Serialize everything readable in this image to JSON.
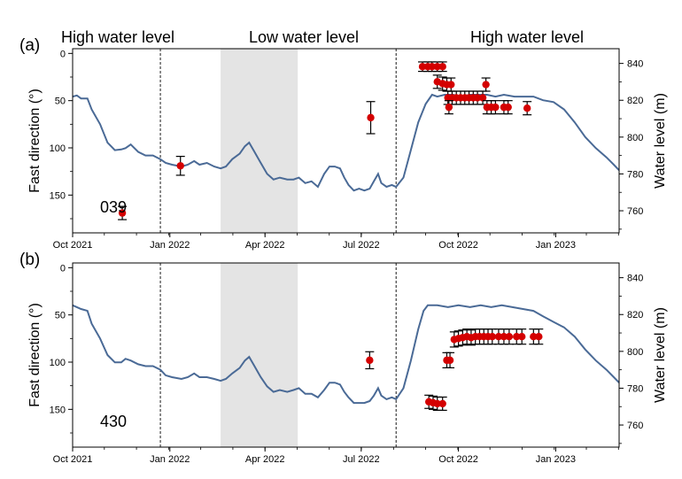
{
  "regions": {
    "high1": "High water level",
    "low": "Low water level",
    "high2": "High water level"
  },
  "colors": {
    "water_line": "#4a6a96",
    "dot": "#d40000",
    "shade": "#e4e4e4"
  },
  "chart_data": [
    {
      "type": "scatter",
      "panel_label": "(a)",
      "station": "039",
      "ylabel_left": "Fast direction (°)",
      "ylabel_right": "Water level (m)",
      "ylim_left": [
        190,
        -5
      ],
      "yticks_left": [
        "0",
        "50",
        "100",
        "150"
      ],
      "ylim_right": [
        748,
        848
      ],
      "yticks_right": [
        "760",
        "780",
        "800",
        "820",
        "840"
      ],
      "x_ticks": [
        "Oct 2021",
        "Jan 2022",
        "Apr 2022",
        "Jul 2022",
        "Oct 2022",
        "Jan 2023"
      ],
      "x_tick_days": [
        0,
        92,
        182,
        273,
        365,
        457
      ],
      "xlim_days": [
        0,
        517
      ],
      "shaded_days": [
        140,
        213
      ],
      "dashed_days": [
        83,
        306
      ],
      "points": [
        {
          "day": 47,
          "y": 169,
          "err": 7
        },
        {
          "day": 102,
          "y": 119,
          "err": 10
        },
        {
          "day": 282,
          "y": 68,
          "err": 17
        },
        {
          "day": 331,
          "y": 14,
          "err": 5
        },
        {
          "day": 336,
          "y": 14,
          "err": 5
        },
        {
          "day": 340,
          "y": 14,
          "err": 5
        },
        {
          "day": 345,
          "y": 14,
          "err": 5
        },
        {
          "day": 350,
          "y": 14,
          "err": 5
        },
        {
          "day": 345,
          "y": 30,
          "err": 7
        },
        {
          "day": 350,
          "y": 32,
          "err": 7
        },
        {
          "day": 354,
          "y": 33,
          "err": 7
        },
        {
          "day": 358,
          "y": 33,
          "err": 7
        },
        {
          "day": 355,
          "y": 47,
          "err": 7
        },
        {
          "day": 359,
          "y": 47,
          "err": 7
        },
        {
          "day": 363,
          "y": 47,
          "err": 7
        },
        {
          "day": 367,
          "y": 47,
          "err": 7
        },
        {
          "day": 371,
          "y": 47,
          "err": 7
        },
        {
          "day": 375,
          "y": 47,
          "err": 7
        },
        {
          "day": 379,
          "y": 47,
          "err": 7
        },
        {
          "day": 383,
          "y": 47,
          "err": 7
        },
        {
          "day": 388,
          "y": 47,
          "err": 7
        },
        {
          "day": 356,
          "y": 57,
          "err": 7
        },
        {
          "day": 391,
          "y": 33,
          "err": 7
        },
        {
          "day": 392,
          "y": 57,
          "err": 7
        },
        {
          "day": 396,
          "y": 57,
          "err": 7
        },
        {
          "day": 400,
          "y": 57,
          "err": 7
        },
        {
          "day": 408,
          "y": 57,
          "err": 7
        },
        {
          "day": 412,
          "y": 57,
          "err": 7
        },
        {
          "day": 430,
          "y": 58,
          "err": 7
        }
      ],
      "water_level": [
        [
          0,
          822
        ],
        [
          4,
          822.6
        ],
        [
          8,
          821
        ],
        [
          14,
          821
        ],
        [
          18,
          815
        ],
        [
          26,
          807
        ],
        [
          33,
          797
        ],
        [
          40,
          792.9
        ],
        [
          46,
          793.3
        ],
        [
          50,
          794
        ],
        [
          55,
          796
        ],
        [
          62,
          792
        ],
        [
          69,
          790
        ],
        [
          76,
          790
        ],
        [
          83,
          788
        ],
        [
          88,
          786
        ],
        [
          94,
          785
        ],
        [
          103,
          784
        ],
        [
          109,
          785
        ],
        [
          115,
          787
        ],
        [
          120,
          785
        ],
        [
          127,
          786
        ],
        [
          134,
          784
        ],
        [
          140,
          783
        ],
        [
          145,
          784
        ],
        [
          151,
          788
        ],
        [
          158,
          791
        ],
        [
          163,
          795
        ],
        [
          167,
          797
        ],
        [
          172,
          792
        ],
        [
          178,
          786
        ],
        [
          184,
          780
        ],
        [
          190,
          777
        ],
        [
          196,
          778
        ],
        [
          203,
          777
        ],
        [
          209,
          777
        ],
        [
          214,
          778
        ],
        [
          220,
          775
        ],
        [
          226,
          776
        ],
        [
          232,
          773
        ],
        [
          238,
          780
        ],
        [
          243,
          784
        ],
        [
          248,
          784
        ],
        [
          253,
          783
        ],
        [
          257,
          778
        ],
        [
          261,
          774
        ],
        [
          266,
          771
        ],
        [
          271,
          772
        ],
        [
          276,
          771
        ],
        [
          281,
          772
        ],
        [
          285,
          776
        ],
        [
          289,
          780
        ],
        [
          292,
          775
        ],
        [
          297,
          773
        ],
        [
          302,
          774
        ],
        [
          306,
          773
        ],
        [
          313,
          778
        ],
        [
          320,
          793
        ],
        [
          327,
          808
        ],
        [
          334,
          818
        ],
        [
          340,
          823
        ],
        [
          345,
          822
        ],
        [
          352,
          823
        ],
        [
          360,
          823
        ],
        [
          368,
          822
        ],
        [
          376,
          823
        ],
        [
          384,
          823
        ],
        [
          392,
          823
        ],
        [
          400,
          822
        ],
        [
          408,
          823
        ],
        [
          418,
          822
        ],
        [
          428,
          822
        ],
        [
          436,
          822
        ],
        [
          445,
          820
        ],
        [
          455,
          819
        ],
        [
          465,
          815
        ],
        [
          475,
          808
        ],
        [
          485,
          800
        ],
        [
          495,
          794
        ],
        [
          505,
          789
        ],
        [
          512,
          785
        ],
        [
          517,
          782
        ]
      ]
    },
    {
      "type": "scatter",
      "panel_label": "(b)",
      "station": "430",
      "ylabel_left": "Fast direction (°)",
      "ylabel_right": "Water level (m)",
      "ylim_left": [
        190,
        -5
      ],
      "yticks_left": [
        "0",
        "50",
        "100",
        "150"
      ],
      "ylim_right": [
        748,
        848
      ],
      "yticks_right": [
        "760",
        "780",
        "800",
        "820",
        "840"
      ],
      "x_ticks": [
        "Oct 2021",
        "Jan 2022",
        "Apr 2022",
        "Jul 2022",
        "Oct 2022",
        "Jan 2023"
      ],
      "x_tick_days": [
        0,
        92,
        182,
        273,
        365,
        457
      ],
      "xlim_days": [
        0,
        517
      ],
      "shaded_days": [
        140,
        213
      ],
      "dashed_days": [
        83,
        306
      ],
      "points": [
        {
          "day": 281,
          "y": 98,
          "err": 9
        },
        {
          "day": 337,
          "y": 142,
          "err": 7
        },
        {
          "day": 341,
          "y": 143,
          "err": 7
        },
        {
          "day": 345,
          "y": 144,
          "err": 7
        },
        {
          "day": 350,
          "y": 144,
          "err": 7
        },
        {
          "day": 354,
          "y": 98,
          "err": 8
        },
        {
          "day": 357,
          "y": 98,
          "err": 8
        },
        {
          "day": 361,
          "y": 76,
          "err": 8
        },
        {
          "day": 365,
          "y": 75,
          "err": 8
        },
        {
          "day": 369,
          "y": 74,
          "err": 8
        },
        {
          "day": 373,
          "y": 73,
          "err": 8
        },
        {
          "day": 377,
          "y": 74,
          "err": 8
        },
        {
          "day": 381,
          "y": 73,
          "err": 8
        },
        {
          "day": 385,
          "y": 73,
          "err": 8
        },
        {
          "day": 389,
          "y": 73,
          "err": 8
        },
        {
          "day": 393,
          "y": 73,
          "err": 8
        },
        {
          "day": 397,
          "y": 73,
          "err": 8
        },
        {
          "day": 403,
          "y": 73,
          "err": 8
        },
        {
          "day": 408,
          "y": 73,
          "err": 8
        },
        {
          "day": 413,
          "y": 73,
          "err": 8
        },
        {
          "day": 420,
          "y": 73,
          "err": 8
        },
        {
          "day": 425,
          "y": 73,
          "err": 8
        },
        {
          "day": 436,
          "y": 73,
          "err": 8
        },
        {
          "day": 441,
          "y": 73,
          "err": 8
        }
      ],
      "water_level": [
        [
          0,
          825
        ],
        [
          4,
          824
        ],
        [
          8,
          823
        ],
        [
          14,
          822
        ],
        [
          18,
          815
        ],
        [
          26,
          807
        ],
        [
          33,
          798
        ],
        [
          40,
          794
        ],
        [
          46,
          794
        ],
        [
          50,
          796
        ],
        [
          55,
          795
        ],
        [
          62,
          793
        ],
        [
          69,
          792
        ],
        [
          76,
          792
        ],
        [
          83,
          790
        ],
        [
          88,
          787
        ],
        [
          94,
          786
        ],
        [
          103,
          785
        ],
        [
          109,
          786
        ],
        [
          115,
          788
        ],
        [
          120,
          786
        ],
        [
          127,
          786
        ],
        [
          134,
          785
        ],
        [
          140,
          784
        ],
        [
          145,
          785
        ],
        [
          151,
          788
        ],
        [
          158,
          791
        ],
        [
          163,
          795
        ],
        [
          167,
          797
        ],
        [
          172,
          792
        ],
        [
          178,
          786
        ],
        [
          184,
          781
        ],
        [
          190,
          778
        ],
        [
          196,
          779
        ],
        [
          203,
          778
        ],
        [
          209,
          779
        ],
        [
          214,
          780
        ],
        [
          220,
          777
        ],
        [
          226,
          777
        ],
        [
          232,
          775
        ],
        [
          238,
          779
        ],
        [
          243,
          783
        ],
        [
          248,
          783
        ],
        [
          253,
          782
        ],
        [
          257,
          778
        ],
        [
          261,
          775
        ],
        [
          266,
          772
        ],
        [
          271,
          772
        ],
        [
          276,
          772
        ],
        [
          281,
          773
        ],
        [
          285,
          776
        ],
        [
          289,
          780
        ],
        [
          292,
          776
        ],
        [
          297,
          774
        ],
        [
          302,
          775
        ],
        [
          306,
          774
        ],
        [
          313,
          780
        ],
        [
          320,
          795
        ],
        [
          327,
          812
        ],
        [
          332,
          822
        ],
        [
          336,
          825
        ],
        [
          345,
          825
        ],
        [
          355,
          824
        ],
        [
          365,
          825
        ],
        [
          376,
          824
        ],
        [
          386,
          825
        ],
        [
          396,
          824
        ],
        [
          406,
          825
        ],
        [
          416,
          824
        ],
        [
          426,
          823
        ],
        [
          436,
          822
        ],
        [
          445,
          819
        ],
        [
          455,
          816
        ],
        [
          465,
          813
        ],
        [
          475,
          808
        ],
        [
          485,
          801
        ],
        [
          495,
          795
        ],
        [
          505,
          790
        ],
        [
          512,
          786
        ],
        [
          517,
          783
        ]
      ]
    }
  ]
}
